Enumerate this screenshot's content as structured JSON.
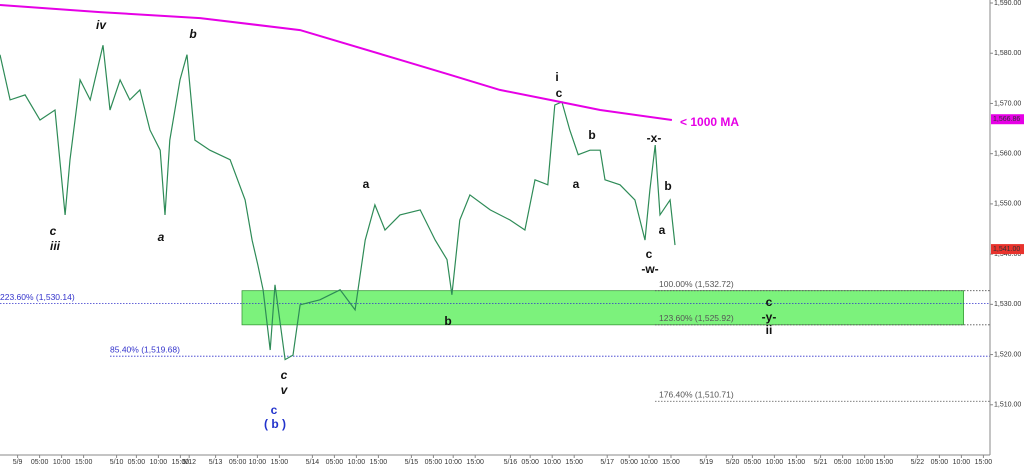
{
  "chart_data": {
    "type": "line",
    "xlim": [
      -4,
      221
    ],
    "ylim": [
      1500,
      1590.6
    ],
    "xticks": [
      {
        "value": 0,
        "label": "5/9"
      },
      {
        "value": 5,
        "label": "05:00"
      },
      {
        "value": 10,
        "label": "10:00"
      },
      {
        "value": 15,
        "label": "15:00"
      },
      {
        "value": 22.5,
        "label": "5/10"
      },
      {
        "value": 27,
        "label": "05:00"
      },
      {
        "value": 32,
        "label": "10:00"
      },
      {
        "value": 37,
        "label": "15:00"
      },
      {
        "value": 39,
        "label": "5/12"
      },
      {
        "value": 45,
        "label": "5/13"
      },
      {
        "value": 50,
        "label": "05:00"
      },
      {
        "value": 54.5,
        "label": "10:00"
      },
      {
        "value": 59.5,
        "label": "15:00"
      },
      {
        "value": 67,
        "label": "5/14"
      },
      {
        "value": 72,
        "label": "05:00"
      },
      {
        "value": 77,
        "label": "10:00"
      },
      {
        "value": 82,
        "label": "15:00"
      },
      {
        "value": 89.5,
        "label": "5/15"
      },
      {
        "value": 94.5,
        "label": "05:00"
      },
      {
        "value": 99,
        "label": "10:00"
      },
      {
        "value": 104,
        "label": "15:00"
      },
      {
        "value": 112,
        "label": "5/16"
      },
      {
        "value": 116.5,
        "label": "05:00"
      },
      {
        "value": 121.5,
        "label": "10:00"
      },
      {
        "value": 126.5,
        "label": "15:00"
      },
      {
        "value": 134,
        "label": "5/17"
      },
      {
        "value": 139,
        "label": "05:00"
      },
      {
        "value": 143.5,
        "label": "10:00"
      },
      {
        "value": 148.5,
        "label": "15:00"
      },
      {
        "value": 156.5,
        "label": "5/19"
      },
      {
        "value": 162.5,
        "label": "5/20"
      },
      {
        "value": 167,
        "label": "05:00"
      },
      {
        "value": 172,
        "label": "10:00"
      },
      {
        "value": 177,
        "label": "15:00"
      },
      {
        "value": 182.5,
        "label": "5/21"
      },
      {
        "value": 187.5,
        "label": "05:00"
      },
      {
        "value": 192.5,
        "label": "10:00"
      },
      {
        "value": 197,
        "label": "15:00"
      },
      {
        "value": 204.5,
        "label": "5/22"
      },
      {
        "value": 209.5,
        "label": "05:00"
      },
      {
        "value": 214.5,
        "label": "10:00"
      },
      {
        "value": 219.5,
        "label": "15:00"
      }
    ],
    "yticks": [
      {
        "value": 1510,
        "label": "1,510.00"
      },
      {
        "value": 1520,
        "label": "1,520.00"
      },
      {
        "value": 1530,
        "label": "1,530.00"
      },
      {
        "value": 1540,
        "label": "1,540.00"
      },
      {
        "value": 1550,
        "label": "1,550.00"
      },
      {
        "value": 1560,
        "label": "1,560.00"
      },
      {
        "value": 1570,
        "label": "1,570.00"
      },
      {
        "value": 1580,
        "label": "1,580.00"
      },
      {
        "value": 1590,
        "label": "1,590.00"
      }
    ],
    "series": [
      {
        "color": "#2e8b57",
        "x": [
          -4,
          -1.7,
          1.7,
          5.1,
          8.5,
          10.8,
          11.9,
          14.2,
          16.5,
          19.4,
          21.0,
          23.3,
          25.5,
          27.8,
          30.1,
          32.4,
          33.5,
          34.6,
          36.9,
          38.5,
          40.3,
          43.7,
          48.3,
          51.7,
          53.3,
          54.6,
          55.8,
          57.4,
          58.5,
          60.8,
          62.6,
          64.2,
          68.7,
          73.3,
          76.7,
          79.0,
          81.2,
          83.5,
          86.9,
          91.5,
          94.9,
          97.6,
          98.7,
          100.5,
          102.8,
          107.4,
          111.9,
          115.3,
          117.6,
          120.5,
          122.1,
          123.7,
          125.5,
          127.4,
          130.1,
          132.4,
          133.5,
          136.9,
          140.3,
          142.6,
          143.7,
          144.9,
          146.0,
          148.3,
          149.4
        ],
        "values": [
          1579.7,
          1570.7,
          1571.7,
          1566.7,
          1568.7,
          1547.8,
          1558.8,
          1574.7,
          1570.7,
          1581.6,
          1568.7,
          1574.7,
          1570.7,
          1572.7,
          1564.7,
          1560.7,
          1547.8,
          1562.7,
          1574.7,
          1579.7,
          1562.7,
          1560.7,
          1558.8,
          1550.8,
          1542.8,
          1537.9,
          1532.9,
          1520.9,
          1533.9,
          1519.0,
          1519.9,
          1529.9,
          1530.9,
          1532.9,
          1528.9,
          1542.8,
          1549.8,
          1544.8,
          1547.8,
          1548.8,
          1542.8,
          1538.9,
          1531.9,
          1546.8,
          1551.8,
          1548.8,
          1546.8,
          1544.8,
          1554.8,
          1553.8,
          1569.7,
          1570.3,
          1564.7,
          1559.8,
          1560.7,
          1560.7,
          1554.8,
          1553.8,
          1550.8,
          1542.8,
          1552.8,
          1561.7,
          1547.8,
          1550.8,
          1541.8
        ]
      },
      {
        "name": "< 1000 MA",
        "color": "#e600e6",
        "x": [
          -4,
          18.7,
          41.5,
          64.2,
          86.9,
          98.3,
          109.6,
          121.0,
          132.4,
          148.7
        ],
        "values": [
          1589.6,
          1588.2,
          1587.0,
          1584.6,
          1578.7,
          1575.7,
          1572.7,
          1570.7,
          1568.7,
          1566.7
        ]
      }
    ],
    "price_labels": [
      {
        "value": 1566.86,
        "label": "1,566.86",
        "color": "#e600e6"
      },
      {
        "value": 1541.0,
        "label": "1,541.00",
        "color": "#e8332d"
      }
    ],
    "zone": {
      "from": 1525.92,
      "to": 1532.72,
      "x": [
        51,
        215
      ],
      "color": "#7cf27c"
    },
    "fib_levels": [
      {
        "value": 1530.14,
        "label": "223.60% (1,530.14)",
        "color": "#3333cc"
      },
      {
        "value": 1519.68,
        "label": "85.40% (1,519.68)",
        "color": "#3333cc"
      },
      {
        "value": 1532.72,
        "label": "100.00% (1,532.72)",
        "color": "#555555"
      },
      {
        "value": 1525.92,
        "label": "123.60% (1,525.92)",
        "color": "#555555"
      },
      {
        "value": 1510.71,
        "label": "176.40% (1,510.71)",
        "color": "#555555"
      }
    ],
    "annotations": [
      "iv",
      "b",
      "c",
      "iii",
      "a",
      "c",
      "v",
      "c",
      "( b )",
      "a",
      "b",
      "i",
      "c",
      "b",
      "a",
      "-x-",
      "b",
      "a",
      "c",
      "-w-",
      "c",
      "-y-",
      "ii"
    ]
  }
}
